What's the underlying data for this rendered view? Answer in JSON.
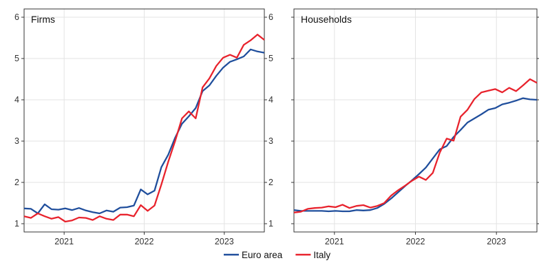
{
  "chart_data": {
    "type": "line",
    "legend": {
      "position": "bottom-center",
      "entries": [
        "Euro area",
        "Italy"
      ]
    },
    "colors": {
      "Euro area": "#1f4e9c",
      "Italy": "#e8222c",
      "grid": "#e3e3e3",
      "frame": "#333333"
    },
    "grid": true,
    "x_ticks": [
      "2021",
      "2022",
      "2023"
    ],
    "y_ticks": [
      "1",
      "2",
      "3",
      "4",
      "5",
      "6"
    ],
    "ylim": [
      0.8,
      6.2
    ],
    "panels": [
      {
        "title": "Firms",
        "series": [
          {
            "name": "Euro area",
            "values": [
              1.37,
              1.36,
              1.25,
              1.47,
              1.35,
              1.34,
              1.37,
              1.33,
              1.38,
              1.32,
              1.28,
              1.25,
              1.32,
              1.29,
              1.39,
              1.4,
              1.44,
              1.83,
              1.71,
              1.8,
              2.37,
              2.67,
              3.08,
              3.42,
              3.6,
              3.8,
              4.21,
              4.35,
              4.58,
              4.78,
              4.92,
              4.98,
              5.05,
              5.22,
              5.17,
              5.14
            ]
          },
          {
            "name": "Italy",
            "values": [
              1.18,
              1.14,
              1.25,
              1.18,
              1.12,
              1.16,
              1.05,
              1.08,
              1.15,
              1.14,
              1.09,
              1.18,
              1.12,
              1.09,
              1.22,
              1.22,
              1.18,
              1.45,
              1.31,
              1.44,
              1.95,
              2.5,
              3.0,
              3.55,
              3.72,
              3.55,
              4.3,
              4.52,
              4.82,
              5.02,
              5.09,
              5.02,
              5.33,
              5.44,
              5.58,
              5.45
            ]
          }
        ]
      },
      {
        "title": "Households",
        "series": [
          {
            "name": "Euro area",
            "values": [
              1.33,
              1.31,
              1.31,
              1.31,
              1.31,
              1.3,
              1.31,
              1.3,
              1.3,
              1.33,
              1.32,
              1.33,
              1.38,
              1.48,
              1.61,
              1.76,
              1.91,
              2.05,
              2.2,
              2.36,
              2.58,
              2.8,
              2.88,
              3.1,
              3.27,
              3.45,
              3.55,
              3.65,
              3.76,
              3.8,
              3.89,
              3.93,
              3.98,
              4.04,
              4.01,
              4.0
            ]
          },
          {
            "name": "Italy",
            "values": [
              1.27,
              1.29,
              1.36,
              1.38,
              1.39,
              1.42,
              1.4,
              1.46,
              1.38,
              1.43,
              1.45,
              1.39,
              1.43,
              1.5,
              1.68,
              1.81,
              1.92,
              2.04,
              2.14,
              2.06,
              2.23,
              2.72,
              3.06,
              3.01,
              3.59,
              3.76,
              4.02,
              4.18,
              4.22,
              4.26,
              4.18,
              4.29,
              4.21,
              4.35,
              4.5,
              4.41
            ]
          }
        ]
      }
    ]
  }
}
